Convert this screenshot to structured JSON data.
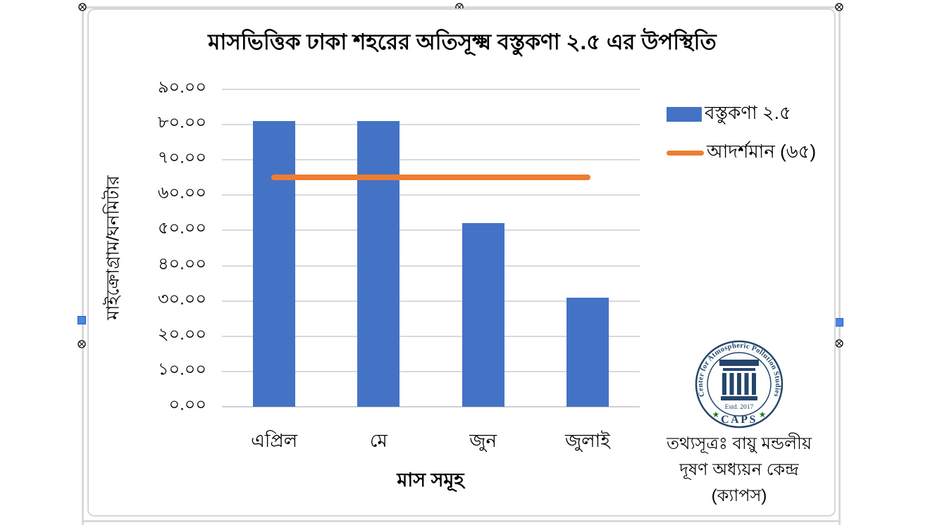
{
  "chart_data": {
    "type": "bar",
    "title": "মাসভিত্তিক ঢাকা শহরের অতিসূক্ষ্ম বস্তুকণা ২.৫ এর উপস্থিতি",
    "categories": [
      "এপ্রিল",
      "মে",
      "জুন",
      "জুলাই"
    ],
    "series": [
      {
        "name": "বস্তুকণা ২.৫",
        "type": "bar",
        "values": [
          81,
          81,
          52,
          31
        ],
        "color": "#4472C4"
      },
      {
        "name": "আদর্শমান (৬৫)",
        "type": "line",
        "values": [
          65,
          65,
          65,
          65
        ],
        "color": "#ED7D31"
      }
    ],
    "xlabel": "মাস সমূহ",
    "ylabel": "মাইক্রোগ্রাম/ঘনমিটার",
    "ylim": [
      0,
      90
    ],
    "ytick_values": [
      0,
      10,
      20,
      30,
      40,
      50,
      60,
      70,
      80,
      90
    ],
    "ytick_labels": [
      "০.০০",
      "১০.০০",
      "২০.০০",
      "৩০.০০",
      "৪০.০০",
      "৫০.০০",
      "৬০.০০",
      "৭০.০০",
      "৮০.০০",
      "৯০.০০"
    ],
    "grid": true,
    "legend_position": "right"
  },
  "colors": {
    "bar": "#4472C4",
    "standard_line": "#ED7D31",
    "gridline": "#D9D9D9",
    "logo_navy": "#24466B",
    "logo_star_green": "#1F7A1F"
  },
  "logo": {
    "ring_text": "Center for Atmospheric Pollution Studies",
    "acronym": "CAPS",
    "established": "Estd. 2017",
    "star_left": "★",
    "star_right": "★"
  },
  "source_note": {
    "line1": "তথ্যসূত্রঃ বায়ু মন্ডলীয়",
    "line2": "দূষণ অধ্যয়ন কেন্দ্র",
    "line3": "(ক্যাপস)"
  }
}
